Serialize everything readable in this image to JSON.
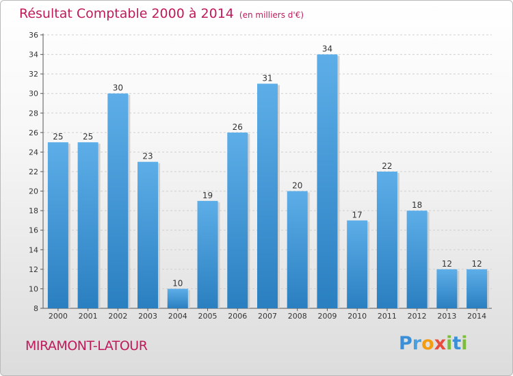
{
  "title": "Résultat Comptable 2000 à 2014",
  "subtitle": "(en milliers d'€)",
  "place": "MIRAMONT-LATOUR",
  "logo": {
    "letters": [
      "P",
      "r",
      "o",
      "x",
      "i",
      "t",
      "i"
    ],
    "colors": [
      "#3a8fd6",
      "#4a9fe0",
      "#f39c12",
      "#e74c3c",
      "#7cbd3c",
      "#3a8fd6",
      "#7cbd3c"
    ]
  },
  "colors": {
    "title": "#c0195a",
    "bar_top": "#5daee8",
    "bar_bottom": "#2a7fc0",
    "shadow": "#c8c8c8"
  },
  "chart_data": {
    "type": "bar",
    "categories": [
      "2000",
      "2001",
      "2002",
      "2003",
      "2004",
      "2005",
      "2006",
      "2007",
      "2008",
      "2009",
      "2010",
      "2011",
      "2012",
      "2013",
      "2014"
    ],
    "values": [
      25,
      25,
      30,
      23,
      10,
      19,
      26,
      31,
      20,
      34,
      17,
      22,
      18,
      12,
      12
    ],
    "ylim": [
      8,
      36
    ],
    "yticks": [
      8,
      10,
      12,
      14,
      16,
      18,
      20,
      22,
      24,
      26,
      28,
      30,
      32,
      34,
      36
    ],
    "grid": true,
    "data_labels": true
  }
}
